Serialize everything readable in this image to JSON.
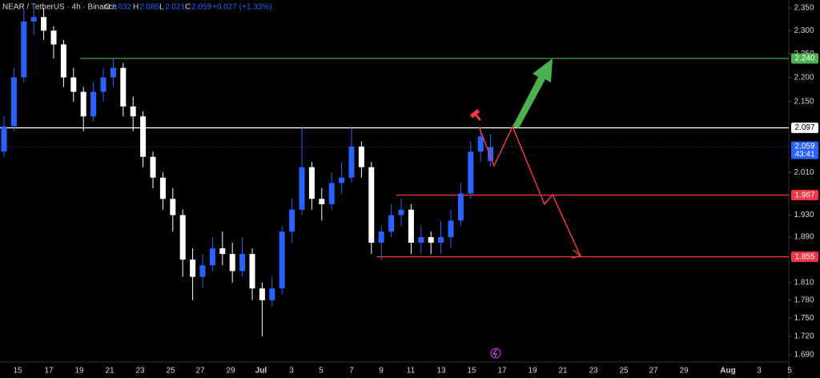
{
  "chart_data": {
    "type": "candlestick",
    "title": "NEAR / TetherUS · 4h · Binance",
    "header": {
      "open": 2.032,
      "high": 2.085,
      "low": 2.021,
      "close": 2.059,
      "change": "+0.027 (+1.33%)",
      "o": "O",
      "h": "H",
      "l": "L",
      "c": "C"
    },
    "log_scale": true,
    "ylim": [
      1.69,
      2.35
    ],
    "yticks": [
      {
        "value": 2.35,
        "label": "2.350"
      },
      {
        "value": 2.3,
        "label": "2.300"
      },
      {
        "value": 2.25,
        "label": "2.250"
      },
      {
        "value": 2.2,
        "label": "2.200"
      },
      {
        "value": 2.15,
        "label": "2.150"
      },
      {
        "value": 2.01,
        "label": "2.010"
      },
      {
        "value": 1.93,
        "label": "1.930"
      },
      {
        "value": 1.89,
        "label": "1.890"
      },
      {
        "value": 1.81,
        "label": "1.810"
      },
      {
        "value": 1.78,
        "label": "1.780"
      },
      {
        "value": 1.75,
        "label": "1.750"
      },
      {
        "value": 1.72,
        "label": "1.720"
      },
      {
        "value": 1.69,
        "label": "1.690"
      }
    ],
    "x_labels": [
      "15",
      "17",
      "19",
      "21",
      "23",
      "25",
      "27",
      "29",
      "Jul",
      "3",
      "5",
      "7",
      "9",
      "11",
      "13",
      "15",
      "17",
      "19",
      "21",
      "23",
      "25",
      "27",
      "29",
      "Aug",
      "3",
      "5"
    ],
    "up_color": "#2962ff",
    "down_color": "#ffffff",
    "open": [
      2.05,
      2.1,
      2.2,
      2.32,
      2.33,
      2.3,
      2.27,
      2.2,
      2.17,
      2.12,
      2.17,
      2.2,
      2.22,
      2.14,
      2.12,
      2.04,
      2.0,
      1.96,
      1.93,
      1.85,
      1.82,
      1.84,
      1.87,
      1.86,
      1.83,
      1.86,
      1.8,
      1.78,
      1.8,
      1.9,
      1.94,
      2.02,
      1.96,
      1.95,
      1.99,
      2.0,
      2.06,
      2.02,
      1.88,
      1.9,
      1.93,
      1.94,
      1.88,
      1.89,
      1.88,
      1.89,
      1.92,
      1.97,
      2.05,
      2.032
    ],
    "high": [
      2.12,
      2.22,
      2.35,
      2.36,
      2.35,
      2.31,
      2.28,
      2.22,
      2.18,
      2.19,
      2.22,
      2.24,
      2.23,
      2.16,
      2.13,
      2.05,
      2.01,
      1.98,
      1.94,
      1.87,
      1.86,
      1.89,
      1.9,
      1.88,
      1.89,
      1.87,
      1.81,
      1.82,
      1.91,
      1.96,
      2.1,
      2.03,
      1.98,
      2.01,
      2.03,
      2.1,
      2.07,
      2.03,
      1.91,
      1.95,
      1.96,
      1.95,
      1.91,
      1.9,
      1.92,
      1.94,
      1.99,
      2.07,
      2.1,
      2.085
    ],
    "low": [
      2.04,
      2.09,
      2.19,
      2.29,
      2.28,
      2.24,
      2.18,
      2.15,
      2.09,
      2.11,
      2.15,
      2.18,
      2.12,
      2.09,
      2.02,
      1.98,
      1.94,
      1.9,
      1.82,
      1.78,
      1.8,
      1.83,
      1.84,
      1.81,
      1.82,
      1.78,
      1.72,
      1.77,
      1.79,
      1.88,
      1.93,
      1.94,
      1.92,
      1.94,
      1.97,
      1.99,
      2.0,
      1.86,
      1.85,
      1.89,
      1.91,
      1.86,
      1.86,
      1.86,
      1.86,
      1.87,
      1.91,
      1.96,
      2.03,
      2.021
    ],
    "close": [
      2.1,
      2.2,
      2.32,
      2.33,
      2.3,
      2.27,
      2.2,
      2.17,
      2.12,
      2.17,
      2.2,
      2.22,
      2.14,
      2.12,
      2.04,
      2.0,
      1.96,
      1.93,
      1.85,
      1.82,
      1.84,
      1.87,
      1.86,
      1.83,
      1.86,
      1.8,
      1.78,
      1.8,
      1.9,
      1.94,
      2.02,
      1.96,
      1.95,
      1.99,
      2.0,
      2.06,
      2.02,
      1.88,
      1.9,
      1.93,
      1.94,
      1.88,
      1.89,
      1.88,
      1.89,
      1.92,
      1.97,
      2.05,
      2.08,
      2.059
    ],
    "levels": [
      {
        "value": 2.24,
        "label": "2.240",
        "color": "#4caf50"
      },
      {
        "value": 2.097,
        "label": "2.097",
        "color": "#ffffff"
      },
      {
        "value": 1.967,
        "label": "1.967",
        "color": "#f23645"
      },
      {
        "value": 1.855,
        "label": "1.855",
        "color": "#f23645"
      }
    ],
    "last_price": {
      "value": 2.059,
      "label": "2.059",
      "countdown": "43:41",
      "color": "#2962ff"
    }
  }
}
